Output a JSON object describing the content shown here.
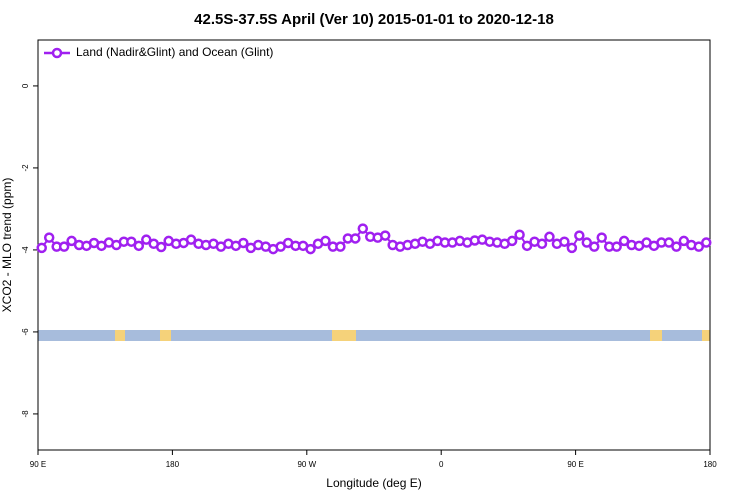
{
  "chart_data": {
    "type": "line",
    "title": "42.5S-37.5S April (Ver 10)   2015-01-01 to 2020-12-18",
    "xlabel": "Longitude (deg E)",
    "ylabel": "XCO2 - MLO trend (ppm)",
    "x": [
      92.5,
      97.5,
      102.5,
      107.5,
      112.5,
      117.5,
      122.5,
      127.5,
      132.5,
      137.5,
      142.5,
      147.5,
      152.5,
      157.5,
      162.5,
      167.5,
      172.5,
      177.5,
      182.5,
      187.5,
      192.5,
      197.5,
      202.5,
      207.5,
      212.5,
      217.5,
      222.5,
      227.5,
      232.5,
      237.5,
      242.5,
      247.5,
      252.5,
      257.5,
      262.5,
      267.5,
      272.5,
      277.5,
      282.5,
      287.5,
      292.5,
      297.5,
      302.5,
      307.5,
      312.5,
      317.5,
      322.5,
      327.5,
      332.5,
      337.5,
      342.5,
      347.5,
      352.5,
      357.5,
      362.5,
      367.5,
      372.5,
      377.5,
      382.5,
      387.5,
      392.5,
      397.5,
      402.5,
      407.5,
      412.5,
      417.5,
      422.5,
      427.5,
      432.5,
      437.5,
      442.5,
      447.5,
      452.5,
      457.5,
      462.5,
      467.5,
      472.5,
      477.5,
      482.5,
      487.5,
      492.5,
      497.5,
      502.5,
      507.5,
      512.5,
      517.5,
      522.5,
      527.5,
      532.5,
      537.5
    ],
    "series": [
      {
        "name": "Land (Nadir&Glint) and Ocean (Glint)",
        "color": "#a020f0",
        "values": [
          -3.95,
          -3.7,
          -3.92,
          -3.92,
          -3.78,
          -3.88,
          -3.9,
          -3.83,
          -3.9,
          -3.82,
          -3.88,
          -3.8,
          -3.8,
          -3.9,
          -3.75,
          -3.85,
          -3.93,
          -3.78,
          -3.85,
          -3.83,
          -3.75,
          -3.85,
          -3.88,
          -3.85,
          -3.92,
          -3.85,
          -3.9,
          -3.83,
          -3.95,
          -3.88,
          -3.92,
          -3.98,
          -3.92,
          -3.83,
          -3.9,
          -3.9,
          -3.98,
          -3.85,
          -3.78,
          -3.92,
          -3.92,
          -3.72,
          -3.72,
          -3.48,
          -3.68,
          -3.7,
          -3.65,
          -3.88,
          -3.92,
          -3.88,
          -3.85,
          -3.8,
          -3.85,
          -3.78,
          -3.82,
          -3.82,
          -3.78,
          -3.82,
          -3.77,
          -3.75,
          -3.8,
          -3.82,
          -3.85,
          -3.78,
          -3.63,
          -3.9,
          -3.8,
          -3.85,
          -3.68,
          -3.85,
          -3.8,
          -3.95,
          -3.65,
          -3.82,
          -3.92,
          -3.7,
          -3.92,
          -3.92,
          -3.78,
          -3.88,
          -3.9,
          -3.82,
          -3.9,
          -3.82,
          -3.82,
          -3.92,
          -3.78,
          -3.88,
          -3.92,
          -3.82
        ]
      }
    ],
    "xlim": [
      90,
      540
    ],
    "xticks": [
      {
        "value": 90,
        "label": "90 E"
      },
      180,
      {
        "value": 270,
        "label": "90 W"
      },
      {
        "value": 360,
        "label": "0"
      },
      {
        "value": 450,
        "label": "90 E"
      },
      {
        "value": 540,
        "label": "180"
      }
    ],
    "ylim": [
      -8.88,
      1.12
    ],
    "yticks": [
      0,
      -2,
      -4,
      -6,
      -8
    ],
    "legend": "top-left",
    "grid": false
  }
}
